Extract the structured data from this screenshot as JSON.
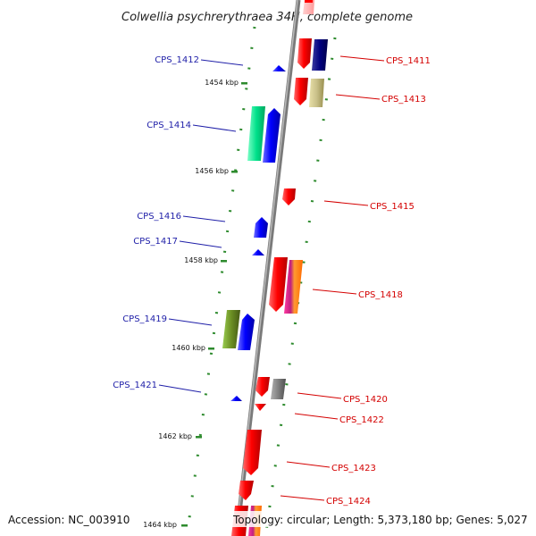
{
  "title": "Colwellia psychrerythraea 34H, complete genome",
  "footer": {
    "accession": "Accession: NC_003910",
    "topology": "Topology: circular; Length: 5,373,180 bp; Genes: 5,027"
  },
  "positions": [
    "1454 kbp",
    "1456 kbp",
    "1458 kbp",
    "1460 kbp",
    "1462 kbp",
    "1464 kbp"
  ],
  "genes_left": [
    "CPS_1412",
    "CPS_1414",
    "CPS_1416",
    "CPS_1417",
    "CPS_1419",
    "CPS_1421"
  ],
  "genes_right": [
    "CPS_1411",
    "CPS_1413",
    "CPS_1415",
    "CPS_1418",
    "CPS_1420",
    "CPS_1422",
    "CPS_1423",
    "CPS_1424"
  ],
  "colors": {
    "forward_label": "#1f1fa8",
    "reverse_label": "#d40000",
    "backbone": "#7a7a7a",
    "tick": "#2e8b2e"
  }
}
